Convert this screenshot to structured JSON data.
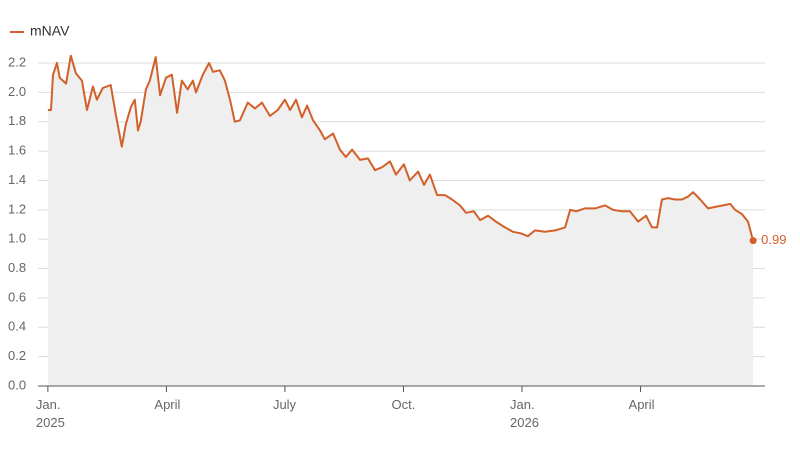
{
  "chart_data": {
    "type": "line",
    "x": [
      0,
      0.08,
      0.13,
      0.23,
      0.3,
      0.46,
      0.58,
      0.71,
      0.86,
      0.99,
      1.14,
      1.24,
      1.39,
      1.59,
      1.72,
      1.87,
      1.97,
      2.1,
      2.2,
      2.28,
      2.35,
      2.48,
      2.58,
      2.73,
      2.84,
      2.99,
      3.14,
      3.27,
      3.39,
      3.54,
      3.67,
      3.75,
      3.92,
      4.08,
      4.18,
      4.35,
      4.48,
      4.61,
      4.73,
      4.86,
      5.06,
      5.24,
      5.42,
      5.62,
      5.82,
      6.0,
      6.13,
      6.28,
      6.43,
      6.56,
      6.71,
      6.89,
      7.01,
      7.22,
      7.39,
      7.54,
      7.7,
      7.9,
      8.1,
      8.28,
      8.46,
      8.66,
      8.81,
      9.01,
      9.16,
      9.37,
      9.52,
      9.67,
      9.85,
      10.05,
      10.23,
      10.43,
      10.58,
      10.78,
      10.94,
      11.14,
      11.34,
      11.57,
      11.77,
      11.97,
      12.15,
      12.33,
      12.58,
      12.84,
      13.09,
      13.22,
      13.37,
      13.59,
      13.85,
      14.1,
      14.3,
      14.53,
      14.73,
      14.94,
      15.14,
      15.29,
      15.42,
      15.54,
      15.7,
      15.87,
      16.05,
      16.2,
      16.33,
      16.51,
      16.71,
      16.89,
      17.09,
      17.27,
      17.39,
      17.57,
      17.72,
      17.85
    ],
    "series": [
      {
        "name": "mNAV",
        "color": "#d2602a",
        "values": [
          1.88,
          1.88,
          2.12,
          2.2,
          2.1,
          2.06,
          2.25,
          2.13,
          2.08,
          1.88,
          2.04,
          1.95,
          2.03,
          2.05,
          1.85,
          1.63,
          1.78,
          1.9,
          1.95,
          1.74,
          1.8,
          2.02,
          2.08,
          2.24,
          1.98,
          2.1,
          2.12,
          1.86,
          2.08,
          2.02,
          2.08,
          2.0,
          2.12,
          2.2,
          2.14,
          2.15,
          2.08,
          1.95,
          1.8,
          1.81,
          1.93,
          1.89,
          1.93,
          1.84,
          1.88,
          1.95,
          1.88,
          1.95,
          1.83,
          1.91,
          1.81,
          1.74,
          1.68,
          1.72,
          1.61,
          1.56,
          1.61,
          1.54,
          1.55,
          1.47,
          1.49,
          1.53,
          1.44,
          1.51,
          1.4,
          1.46,
          1.37,
          1.44,
          1.3,
          1.3,
          1.27,
          1.23,
          1.18,
          1.19,
          1.13,
          1.16,
          1.12,
          1.08,
          1.05,
          1.04,
          1.02,
          1.06,
          1.05,
          1.06,
          1.08,
          1.2,
          1.19,
          1.21,
          1.21,
          1.23,
          1.2,
          1.19,
          1.19,
          1.12,
          1.16,
          1.08,
          1.08,
          1.27,
          1.28,
          1.27,
          1.27,
          1.29,
          1.32,
          1.27,
          1.21,
          1.22,
          1.23,
          1.24,
          1.2,
          1.17,
          1.12,
          0.99
        ]
      }
    ],
    "xlim": [
      -0.25,
      18.15
    ],
    "ylim": [
      0,
      2.2
    ],
    "xticks": [
      {
        "value": 0,
        "label": "Jan.\n2025"
      },
      {
        "value": 3,
        "label": "April"
      },
      {
        "value": 6,
        "label": "July"
      },
      {
        "value": 9,
        "label": "Oct."
      },
      {
        "value": 12,
        "label": "Jan.\n2026"
      },
      {
        "value": 15,
        "label": "April"
      }
    ],
    "yticks": [
      {
        "value": 0,
        "label": "0.0"
      },
      0.2,
      0.4,
      0.6,
      0.8,
      {
        "value": 1,
        "label": "1.0"
      },
      1.2,
      1.4,
      1.6,
      1.8,
      {
        "value": 2,
        "label": "2.0"
      },
      2.2
    ],
    "grid": true,
    "area": true,
    "legend": "top-left"
  }
}
